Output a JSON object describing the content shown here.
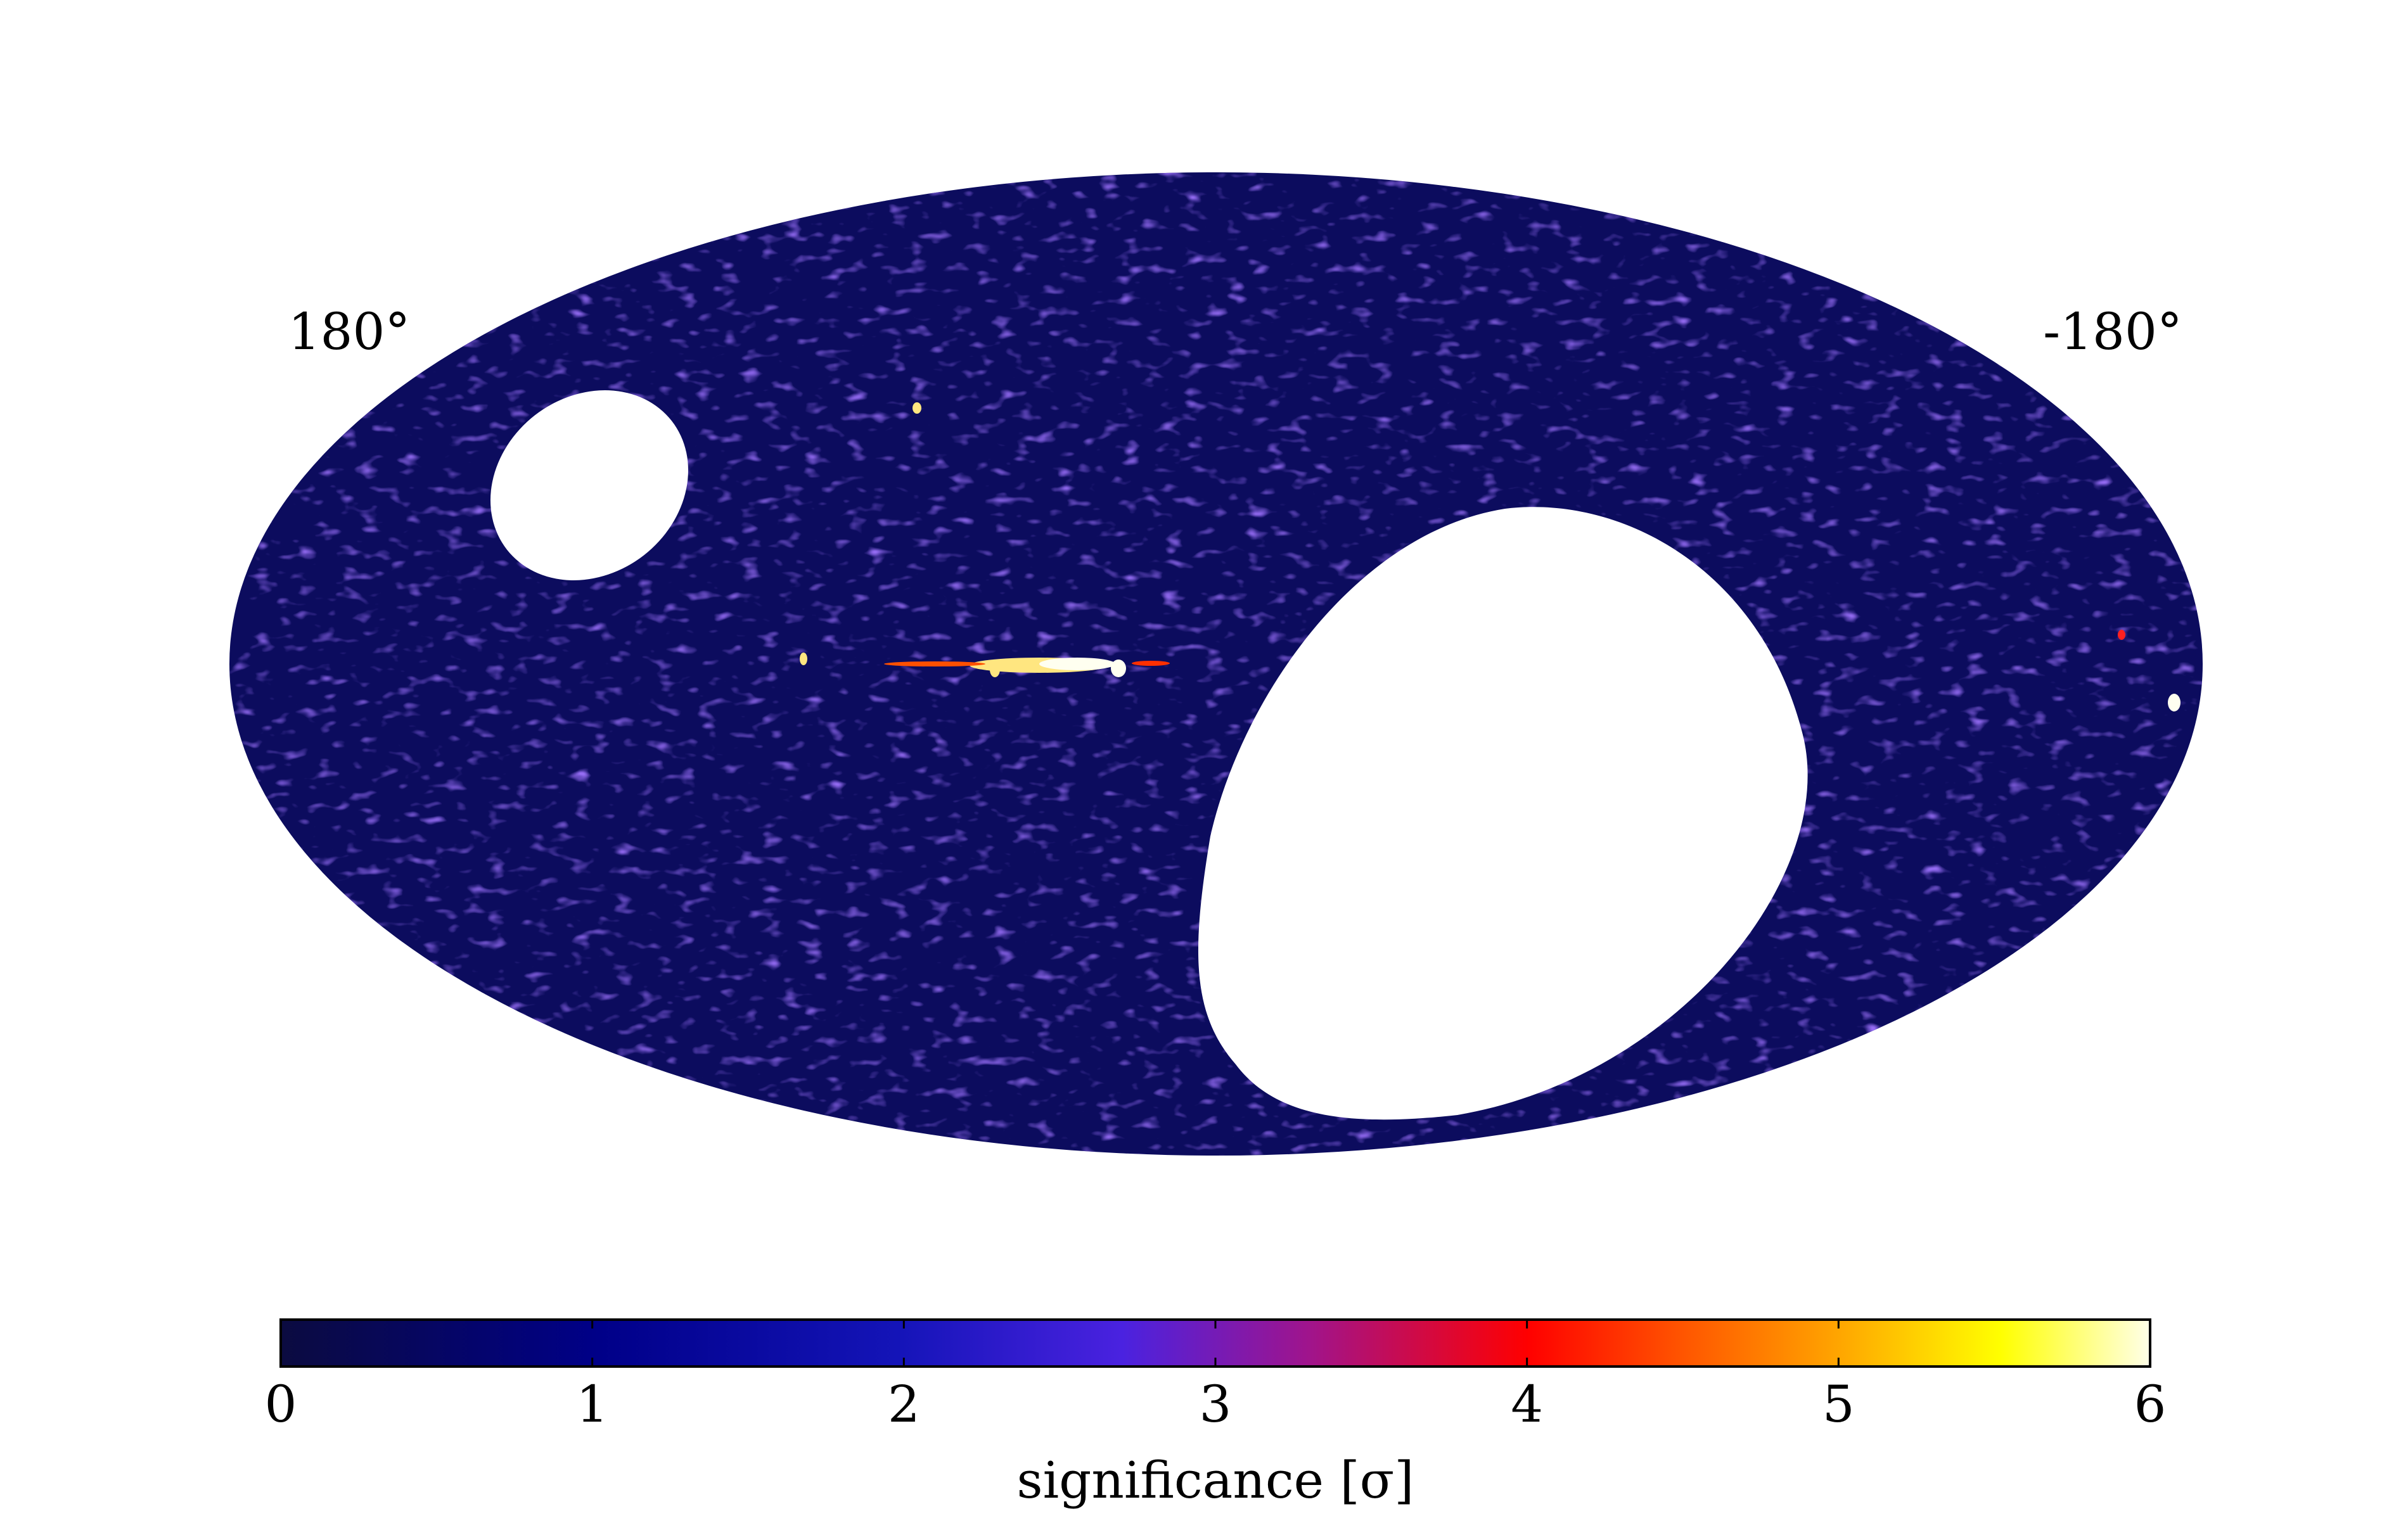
{
  "chart_data": {
    "type": "skymap",
    "lon_labels": [
      "180°",
      "-180°"
    ],
    "colorbar": {
      "label": "significance [σ]",
      "lim": [
        0,
        6
      ],
      "ticks": [
        0,
        1,
        2,
        3,
        4,
        5,
        6
      ]
    }
  }
}
